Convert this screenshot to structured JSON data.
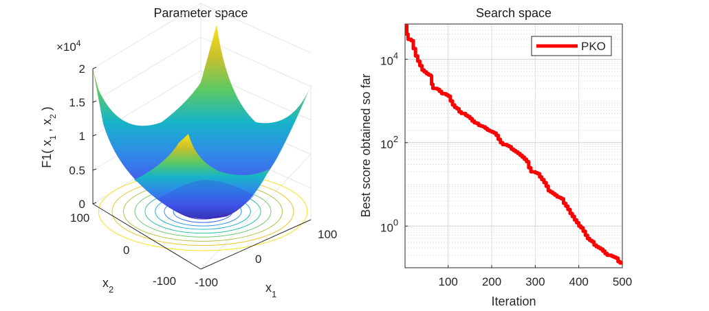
{
  "figure": {
    "left_panel": {
      "title": "Parameter space",
      "zlabel": "F1( x",
      "zlabel_sub1": "1",
      "zlabel_mid": " , x",
      "zlabel_sub2": "2",
      "zlabel_end": " )",
      "zscale_prefix": "×10",
      "zscale_exp": "4",
      "xlabel": "x",
      "xlabel_sub": "1",
      "ylabel": "x",
      "ylabel_sub": "2",
      "z_ticks": [
        "0",
        "0.5",
        "1",
        "1.5",
        "2"
      ],
      "x1_ticks": [
        "-100",
        "0",
        "100"
      ],
      "x2_ticks": [
        "100",
        "0",
        "-100"
      ],
      "colormap": [
        "#3e26a8",
        "#4757ec",
        "#2f8ae8",
        "#18b4c8",
        "#5dc962",
        "#c8c02c",
        "#f9e21c"
      ]
    },
    "right_panel": {
      "title": "Search space",
      "xlabel": "Iteration",
      "ylabel": "Best score obtained so far",
      "x_ticks": [
        "100",
        "200",
        "300",
        "400",
        "500"
      ],
      "y_ticks": [
        {
          "base": "10",
          "exp": "4"
        },
        {
          "base": "10",
          "exp": "2"
        },
        {
          "base": "10",
          "exp": "0"
        }
      ],
      "legend": "PKO",
      "line_color": "#ff0000"
    }
  },
  "chart_data": [
    {
      "type": "surface",
      "title": "Parameter space",
      "function": "F1 = x1^2 + x2^2",
      "x1_range": [
        -100,
        100
      ],
      "x2_range": [
        -100,
        100
      ],
      "zlim": [
        0,
        20000
      ],
      "z_scale_label": "×10^4",
      "contours_on_base": true,
      "grid": true
    },
    {
      "type": "line",
      "title": "Search space",
      "xlabel": "Iteration",
      "ylabel": "Best score obtained so far",
      "y_scale": "log",
      "xlim": [
        1,
        500
      ],
      "ylim": [
        0.1,
        70000
      ],
      "grid": true,
      "legend_position": "top-right",
      "series": [
        {
          "name": "PKO",
          "color": "#ff0000",
          "x": [
            1,
            5,
            8,
            10,
            15,
            20,
            25,
            30,
            35,
            40,
            45,
            50,
            55,
            60,
            62,
            65,
            70,
            75,
            80,
            85,
            90,
            95,
            100,
            105,
            110,
            115,
            120,
            125,
            130,
            135,
            140,
            145,
            150,
            155,
            160,
            165,
            170,
            175,
            180,
            185,
            190,
            195,
            200,
            205,
            210,
            215,
            220,
            225,
            230,
            235,
            240,
            245,
            250,
            255,
            260,
            265,
            270,
            275,
            280,
            285,
            290,
            295,
            300,
            305,
            310,
            315,
            320,
            325,
            330,
            335,
            340,
            345,
            350,
            355,
            360,
            365,
            370,
            375,
            380,
            385,
            390,
            395,
            400,
            405,
            410,
            415,
            420,
            425,
            430,
            435,
            440,
            445,
            450,
            455,
            460,
            465,
            470,
            475,
            480,
            485,
            490,
            495,
            500
          ],
          "y": [
            65000,
            40000,
            30000,
            30000,
            28000,
            18000,
            12000,
            9000,
            7000,
            5500,
            5000,
            4500,
            4200,
            4000,
            2500,
            2000,
            2000,
            1900,
            1700,
            1500,
            1500,
            1400,
            1300,
            1000,
            800,
            700,
            650,
            550,
            500,
            500,
            450,
            420,
            380,
            330,
            300,
            290,
            260,
            250,
            240,
            220,
            200,
            190,
            180,
            170,
            150,
            120,
            100,
            90,
            90,
            85,
            80,
            70,
            65,
            60,
            55,
            50,
            45,
            40,
            35,
            25,
            20,
            20,
            19,
            18,
            15,
            13,
            11,
            9,
            7,
            6.5,
            6,
            5.5,
            5.0,
            4.8,
            4.5,
            3.5,
            3.0,
            2.5,
            2.0,
            1.7,
            1.4,
            1.2,
            1.0,
            0.9,
            0.75,
            0.6,
            0.5,
            0.45,
            0.42,
            0.35,
            0.32,
            0.3,
            0.28,
            0.25,
            0.22,
            0.2,
            0.2,
            0.19,
            0.18,
            0.17,
            0.14,
            0.13,
            0.12
          ]
        }
      ]
    }
  ]
}
